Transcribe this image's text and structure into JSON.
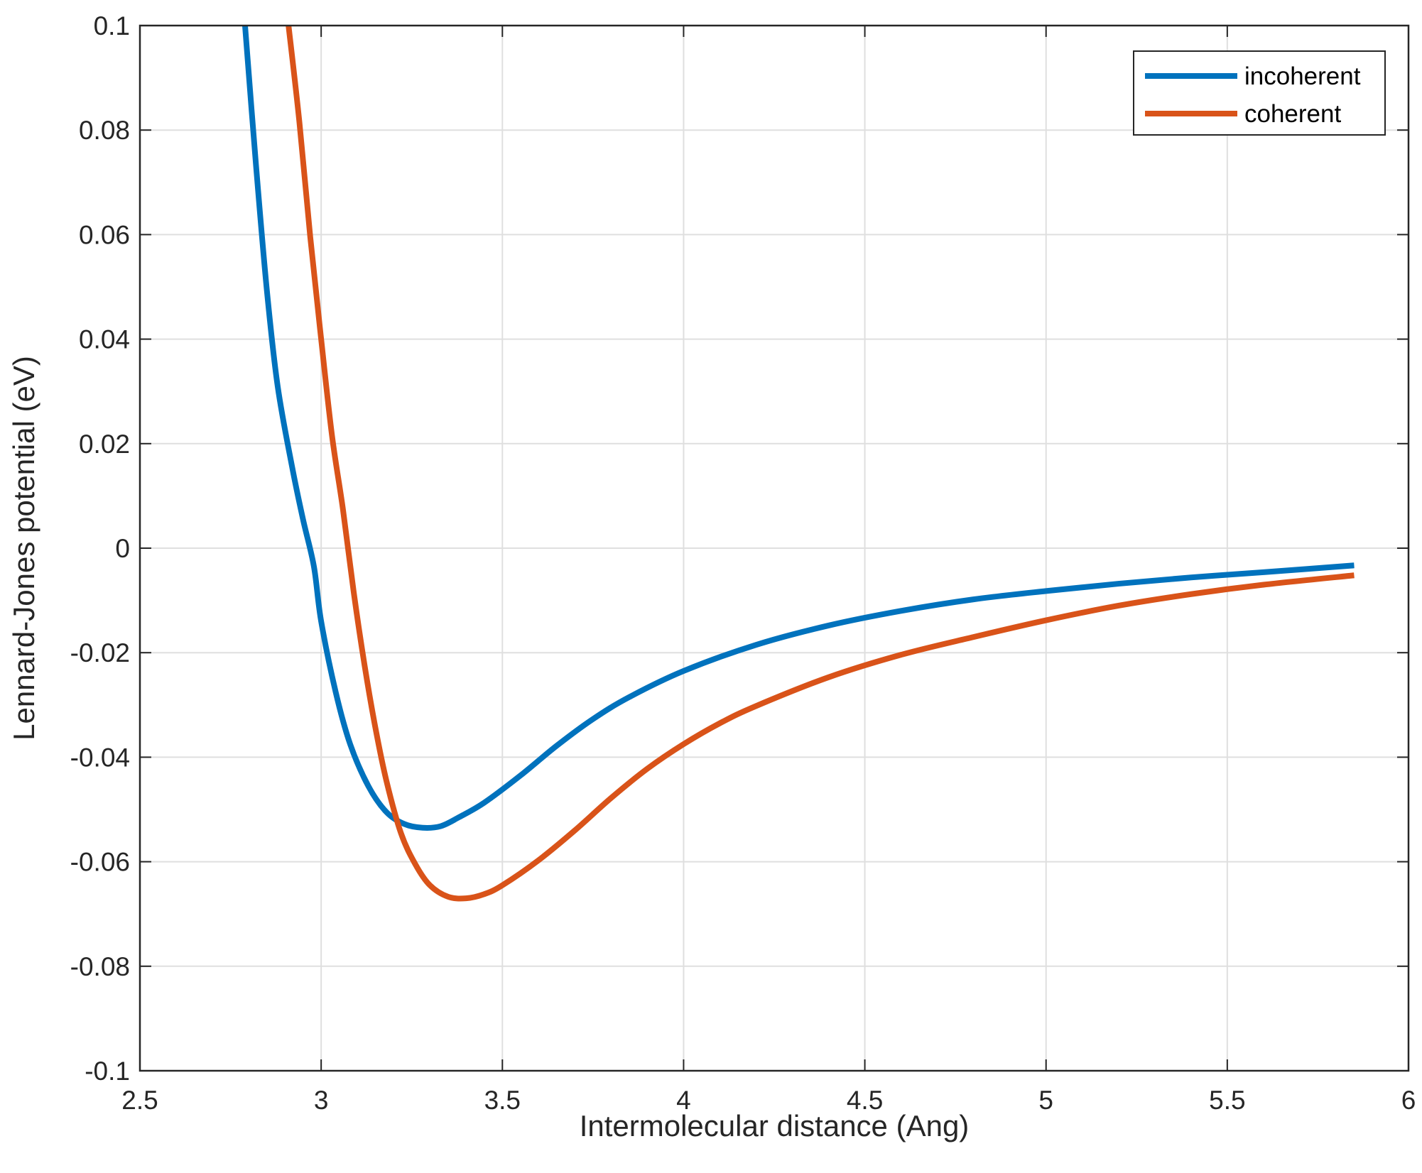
{
  "chart_data": {
    "type": "line",
    "xlabel": "Intermolecular distance (Ang)",
    "ylabel": "Lennard-Jones potential (eV)",
    "xlim": [
      2.5,
      6
    ],
    "ylim": [
      -0.1,
      0.1
    ],
    "x_ticks": [
      2.5,
      3,
      3.5,
      4,
      4.5,
      5,
      5.5,
      6
    ],
    "x_tick_labels": [
      "2.5",
      "3",
      "3.5",
      "4",
      "4.5",
      "5",
      "5.5",
      "6"
    ],
    "y_ticks": [
      -0.1,
      -0.08,
      -0.06,
      -0.04,
      -0.02,
      0,
      0.02,
      0.04,
      0.06,
      0.08,
      0.1
    ],
    "y_tick_labels": [
      "-0.1",
      "-0.08",
      "-0.06",
      "-0.04",
      "-0.02",
      "0",
      "0.02",
      "0.04",
      "0.06",
      "0.08",
      "0.1"
    ],
    "grid": true,
    "legend_position": "top-right",
    "series": [
      {
        "name": "incoherent",
        "color": "#0072BD",
        "x": [
          2.79,
          2.82,
          2.85,
          2.88,
          2.92,
          2.95,
          2.98,
          3.0,
          3.04,
          3.08,
          3.13,
          3.18,
          3.23,
          3.28,
          3.33,
          3.38,
          3.45,
          3.55,
          3.65,
          3.75,
          3.85,
          4.0,
          4.2,
          4.4,
          4.6,
          4.8,
          5.0,
          5.2,
          5.4,
          5.6,
          5.85
        ],
        "y": [
          0.1,
          0.0735,
          0.0495,
          0.031,
          0.0155,
          0.0055,
          -0.0035,
          -0.014,
          -0.0275,
          -0.0375,
          -0.0455,
          -0.0505,
          -0.0528,
          -0.0535,
          -0.0532,
          -0.0515,
          -0.0487,
          -0.0435,
          -0.0378,
          -0.0327,
          -0.0285,
          -0.0235,
          -0.0185,
          -0.0148,
          -0.012,
          -0.0098,
          -0.0082,
          -0.0068,
          -0.0056,
          -0.0046,
          -0.0033
        ]
      },
      {
        "name": "coherent",
        "color": "#D95319",
        "x": [
          2.91,
          2.94,
          2.97,
          3.0,
          3.03,
          3.06,
          3.09,
          3.12,
          3.15,
          3.18,
          3.22,
          3.26,
          3.3,
          3.35,
          3.4,
          3.45,
          3.5,
          3.6,
          3.7,
          3.8,
          3.9,
          4.0,
          4.1,
          4.2,
          4.4,
          4.6,
          4.8,
          5.0,
          5.2,
          5.4,
          5.6,
          5.85
        ],
        "y": [
          0.1,
          0.0815,
          0.0595,
          0.04,
          0.0215,
          0.0075,
          -0.0085,
          -0.0225,
          -0.0345,
          -0.0445,
          -0.0545,
          -0.0605,
          -0.0645,
          -0.0667,
          -0.067,
          -0.0662,
          -0.0645,
          -0.0597,
          -0.054,
          -0.0478,
          -0.0422,
          -0.0375,
          -0.0335,
          -0.0302,
          -0.0247,
          -0.0204,
          -0.017,
          -0.0138,
          -0.011,
          -0.0088,
          -0.007,
          -0.0052
        ]
      }
    ]
  }
}
